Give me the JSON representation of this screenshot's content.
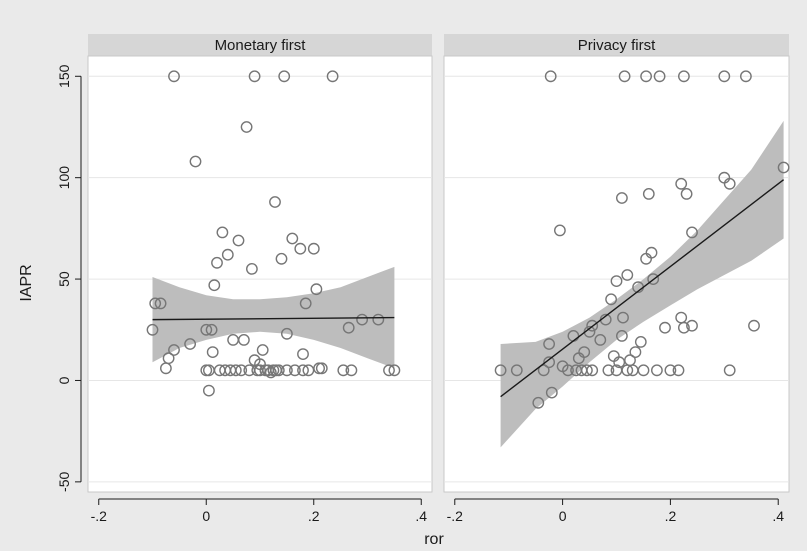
{
  "chart_data": {
    "type": "scatter",
    "xlabel": "ror",
    "ylabel": "IAPR",
    "xlim": [
      -0.22,
      0.42
    ],
    "ylim": [
      -55,
      160
    ],
    "x_ticks": [
      {
        "value": -0.2,
        "label": "-.2"
      },
      {
        "value": 0,
        "label": "0"
      },
      {
        "value": 0.2,
        "label": ".2"
      },
      {
        "value": 0.4,
        "label": ".4"
      }
    ],
    "y_ticks": [
      {
        "value": -50,
        "label": "-50"
      },
      {
        "value": 0,
        "label": "0"
      },
      {
        "value": 50,
        "label": "50"
      },
      {
        "value": 100,
        "label": "100"
      },
      {
        "value": 150,
        "label": "150"
      }
    ],
    "grid": true,
    "colors": {
      "panel_header": "#d6d6d6",
      "panel_border": "#c8c8c8",
      "grid": "#e6e6e6",
      "marker": "#767676",
      "fit_line": "#1a1a1a",
      "ci_band": "#bdbdbd",
      "figure_bg": "#eaeaea"
    },
    "panels": [
      {
        "title": "Monetary first",
        "points": [
          [
            -0.1,
            25
          ],
          [
            -0.095,
            38
          ],
          [
            -0.085,
            38
          ],
          [
            -0.075,
            6
          ],
          [
            -0.07,
            11
          ],
          [
            -0.06,
            150
          ],
          [
            -0.06,
            15
          ],
          [
            -0.03,
            18
          ],
          [
            -0.02,
            108
          ],
          [
            0,
            25
          ],
          [
            0,
            5
          ],
          [
            0.005,
            -5
          ],
          [
            0.005,
            5
          ],
          [
            0.01,
            25
          ],
          [
            0.012,
            14
          ],
          [
            0.015,
            47
          ],
          [
            0.02,
            58
          ],
          [
            0.025,
            5
          ],
          [
            0.03,
            73
          ],
          [
            0.035,
            5
          ],
          [
            0.04,
            62
          ],
          [
            0.045,
            5
          ],
          [
            0.05,
            20
          ],
          [
            0.055,
            5
          ],
          [
            0.06,
            69
          ],
          [
            0.065,
            5
          ],
          [
            0.07,
            20
          ],
          [
            0.075,
            125
          ],
          [
            0.08,
            5
          ],
          [
            0.085,
            55
          ],
          [
            0.09,
            10
          ],
          [
            0.09,
            150
          ],
          [
            0.095,
            5
          ],
          [
            0.1,
            8
          ],
          [
            0.1,
            5
          ],
          [
            0.105,
            15
          ],
          [
            0.11,
            5
          ],
          [
            0.115,
            5
          ],
          [
            0.12,
            4
          ],
          [
            0.125,
            5
          ],
          [
            0.128,
            88
          ],
          [
            0.13,
            5
          ],
          [
            0.135,
            5
          ],
          [
            0.14,
            60
          ],
          [
            0.145,
            150
          ],
          [
            0.15,
            5
          ],
          [
            0.15,
            23
          ],
          [
            0.16,
            70
          ],
          [
            0.165,
            5
          ],
          [
            0.175,
            65
          ],
          [
            0.18,
            13
          ],
          [
            0.18,
            5
          ],
          [
            0.185,
            38
          ],
          [
            0.19,
            5
          ],
          [
            0.2,
            65
          ],
          [
            0.205,
            45
          ],
          [
            0.21,
            6
          ],
          [
            0.215,
            6
          ],
          [
            0.235,
            150
          ],
          [
            0.255,
            5
          ],
          [
            0.265,
            26
          ],
          [
            0.27,
            5
          ],
          [
            0.29,
            30
          ],
          [
            0.32,
            30
          ],
          [
            0.34,
            5
          ],
          [
            0.35,
            5
          ]
        ],
        "fit": {
          "x": [
            -0.1,
            0.35
          ],
          "y": [
            30,
            31
          ]
        },
        "ci_band": {
          "x": [
            -0.1,
            -0.05,
            0,
            0.05,
            0.1,
            0.15,
            0.2,
            0.25,
            0.3,
            0.35
          ],
          "upper": [
            51,
            46,
            42,
            40,
            40,
            41,
            43,
            46,
            51,
            56
          ],
          "lower": [
            9,
            16,
            20,
            23,
            24,
            23,
            20,
            16,
            11,
            6
          ]
        }
      },
      {
        "title": "Privacy first",
        "points": [
          [
            -0.115,
            5
          ],
          [
            -0.085,
            5
          ],
          [
            -0.045,
            -11
          ],
          [
            -0.035,
            5
          ],
          [
            -0.025,
            18
          ],
          [
            -0.025,
            9
          ],
          [
            -0.022,
            150
          ],
          [
            -0.02,
            -6
          ],
          [
            -0.005,
            74
          ],
          [
            0,
            7
          ],
          [
            0.01,
            5
          ],
          [
            0.02,
            22
          ],
          [
            0.025,
            5
          ],
          [
            0.03,
            11
          ],
          [
            0.035,
            5
          ],
          [
            0.04,
            14
          ],
          [
            0.045,
            5
          ],
          [
            0.05,
            24
          ],
          [
            0.055,
            27
          ],
          [
            0.055,
            5
          ],
          [
            0.07,
            20
          ],
          [
            0.08,
            30
          ],
          [
            0.085,
            5
          ],
          [
            0.09,
            40
          ],
          [
            0.095,
            12
          ],
          [
            0.1,
            49
          ],
          [
            0.1,
            5
          ],
          [
            0.105,
            9
          ],
          [
            0.11,
            90
          ],
          [
            0.11,
            22
          ],
          [
            0.112,
            31
          ],
          [
            0.115,
            150
          ],
          [
            0.12,
            52
          ],
          [
            0.12,
            5
          ],
          [
            0.125,
            10
          ],
          [
            0.13,
            5
          ],
          [
            0.135,
            14
          ],
          [
            0.14,
            46
          ],
          [
            0.145,
            19
          ],
          [
            0.15,
            5
          ],
          [
            0.155,
            150
          ],
          [
            0.155,
            60
          ],
          [
            0.16,
            92
          ],
          [
            0.165,
            63
          ],
          [
            0.168,
            50
          ],
          [
            0.175,
            5
          ],
          [
            0.18,
            150
          ],
          [
            0.19,
            26
          ],
          [
            0.2,
            5
          ],
          [
            0.215,
            5
          ],
          [
            0.22,
            97
          ],
          [
            0.22,
            31
          ],
          [
            0.225,
            26
          ],
          [
            0.225,
            150
          ],
          [
            0.23,
            92
          ],
          [
            0.24,
            27
          ],
          [
            0.24,
            73
          ],
          [
            0.3,
            100
          ],
          [
            0.3,
            150
          ],
          [
            0.31,
            97
          ],
          [
            0.31,
            5
          ],
          [
            0.34,
            150
          ],
          [
            0.355,
            27
          ],
          [
            0.41,
            105
          ]
        ],
        "fit": {
          "x": [
            -0.115,
            0.41
          ],
          "y": [
            -8,
            99
          ]
        },
        "ci_band": {
          "x": [
            -0.115,
            -0.05,
            0,
            0.05,
            0.1,
            0.15,
            0.2,
            0.25,
            0.3,
            0.35,
            0.41
          ],
          "upper": [
            18,
            19,
            24,
            31,
            40,
            50,
            61,
            74,
            89,
            104,
            128
          ],
          "lower": [
            -33,
            -14,
            -3,
            9,
            20,
            29,
            37,
            45,
            52,
            59,
            70
          ]
        }
      }
    ]
  }
}
